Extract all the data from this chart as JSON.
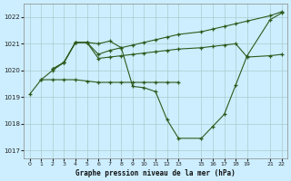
{
  "title": "Graphe pression niveau de la mer (hPa)",
  "bg_color": "#cceeff",
  "grid_color": "#aacccc",
  "line_color": "#2d5a1b",
  "xlim": [
    -0.5,
    22.5
  ],
  "ylim": [
    1016.7,
    1022.5
  ],
  "yticks": [
    1017,
    1018,
    1019,
    1020,
    1021,
    1022
  ],
  "xticks": [
    0,
    1,
    2,
    3,
    4,
    5,
    6,
    7,
    8,
    9,
    10,
    11,
    12,
    13,
    15,
    16,
    17,
    18,
    19,
    21,
    22
  ],
  "series1_x": [
    0,
    1,
    2,
    3,
    4,
    5,
    6,
    7,
    8,
    9,
    10,
    11,
    12,
    13,
    15,
    16,
    17,
    18,
    19,
    21,
    22
  ],
  "series1_y": [
    1019.1,
    1019.65,
    1020.0,
    1020.3,
    1021.05,
    1021.05,
    1021.0,
    1021.1,
    1020.85,
    1019.4,
    1019.35,
    1019.2,
    1018.15,
    1017.45,
    1017.45,
    1017.9,
    1018.35,
    1019.45,
    1020.55,
    1021.9,
    1022.15
  ],
  "series2_x": [
    1,
    2,
    3,
    4,
    5,
    6,
    7,
    8,
    9,
    10,
    11,
    12,
    13
  ],
  "series2_y": [
    1019.65,
    1019.65,
    1019.65,
    1019.65,
    1019.6,
    1019.55,
    1019.55,
    1019.55,
    1019.55,
    1019.55,
    1019.55,
    1019.55,
    1019.55
  ],
  "series3_x": [
    2,
    3,
    4,
    5,
    6,
    7,
    8,
    9,
    10,
    11,
    12,
    13,
    15,
    16,
    17,
    18,
    19,
    21,
    22
  ],
  "series3_y": [
    1020.05,
    1020.3,
    1021.05,
    1021.05,
    1020.45,
    1020.5,
    1020.55,
    1020.6,
    1020.65,
    1020.7,
    1020.75,
    1020.8,
    1020.85,
    1020.9,
    1020.95,
    1021.0,
    1020.5,
    1020.55,
    1020.6
  ],
  "series4_x": [
    2,
    3,
    4,
    5,
    6,
    7,
    8,
    9,
    10,
    11,
    12,
    13,
    15,
    16,
    17,
    18,
    19,
    21,
    22
  ],
  "series4_y": [
    1020.05,
    1020.3,
    1021.05,
    1021.05,
    1020.6,
    1020.75,
    1020.85,
    1020.95,
    1021.05,
    1021.15,
    1021.25,
    1021.35,
    1021.45,
    1021.55,
    1021.65,
    1021.75,
    1021.85,
    1022.05,
    1022.2
  ]
}
